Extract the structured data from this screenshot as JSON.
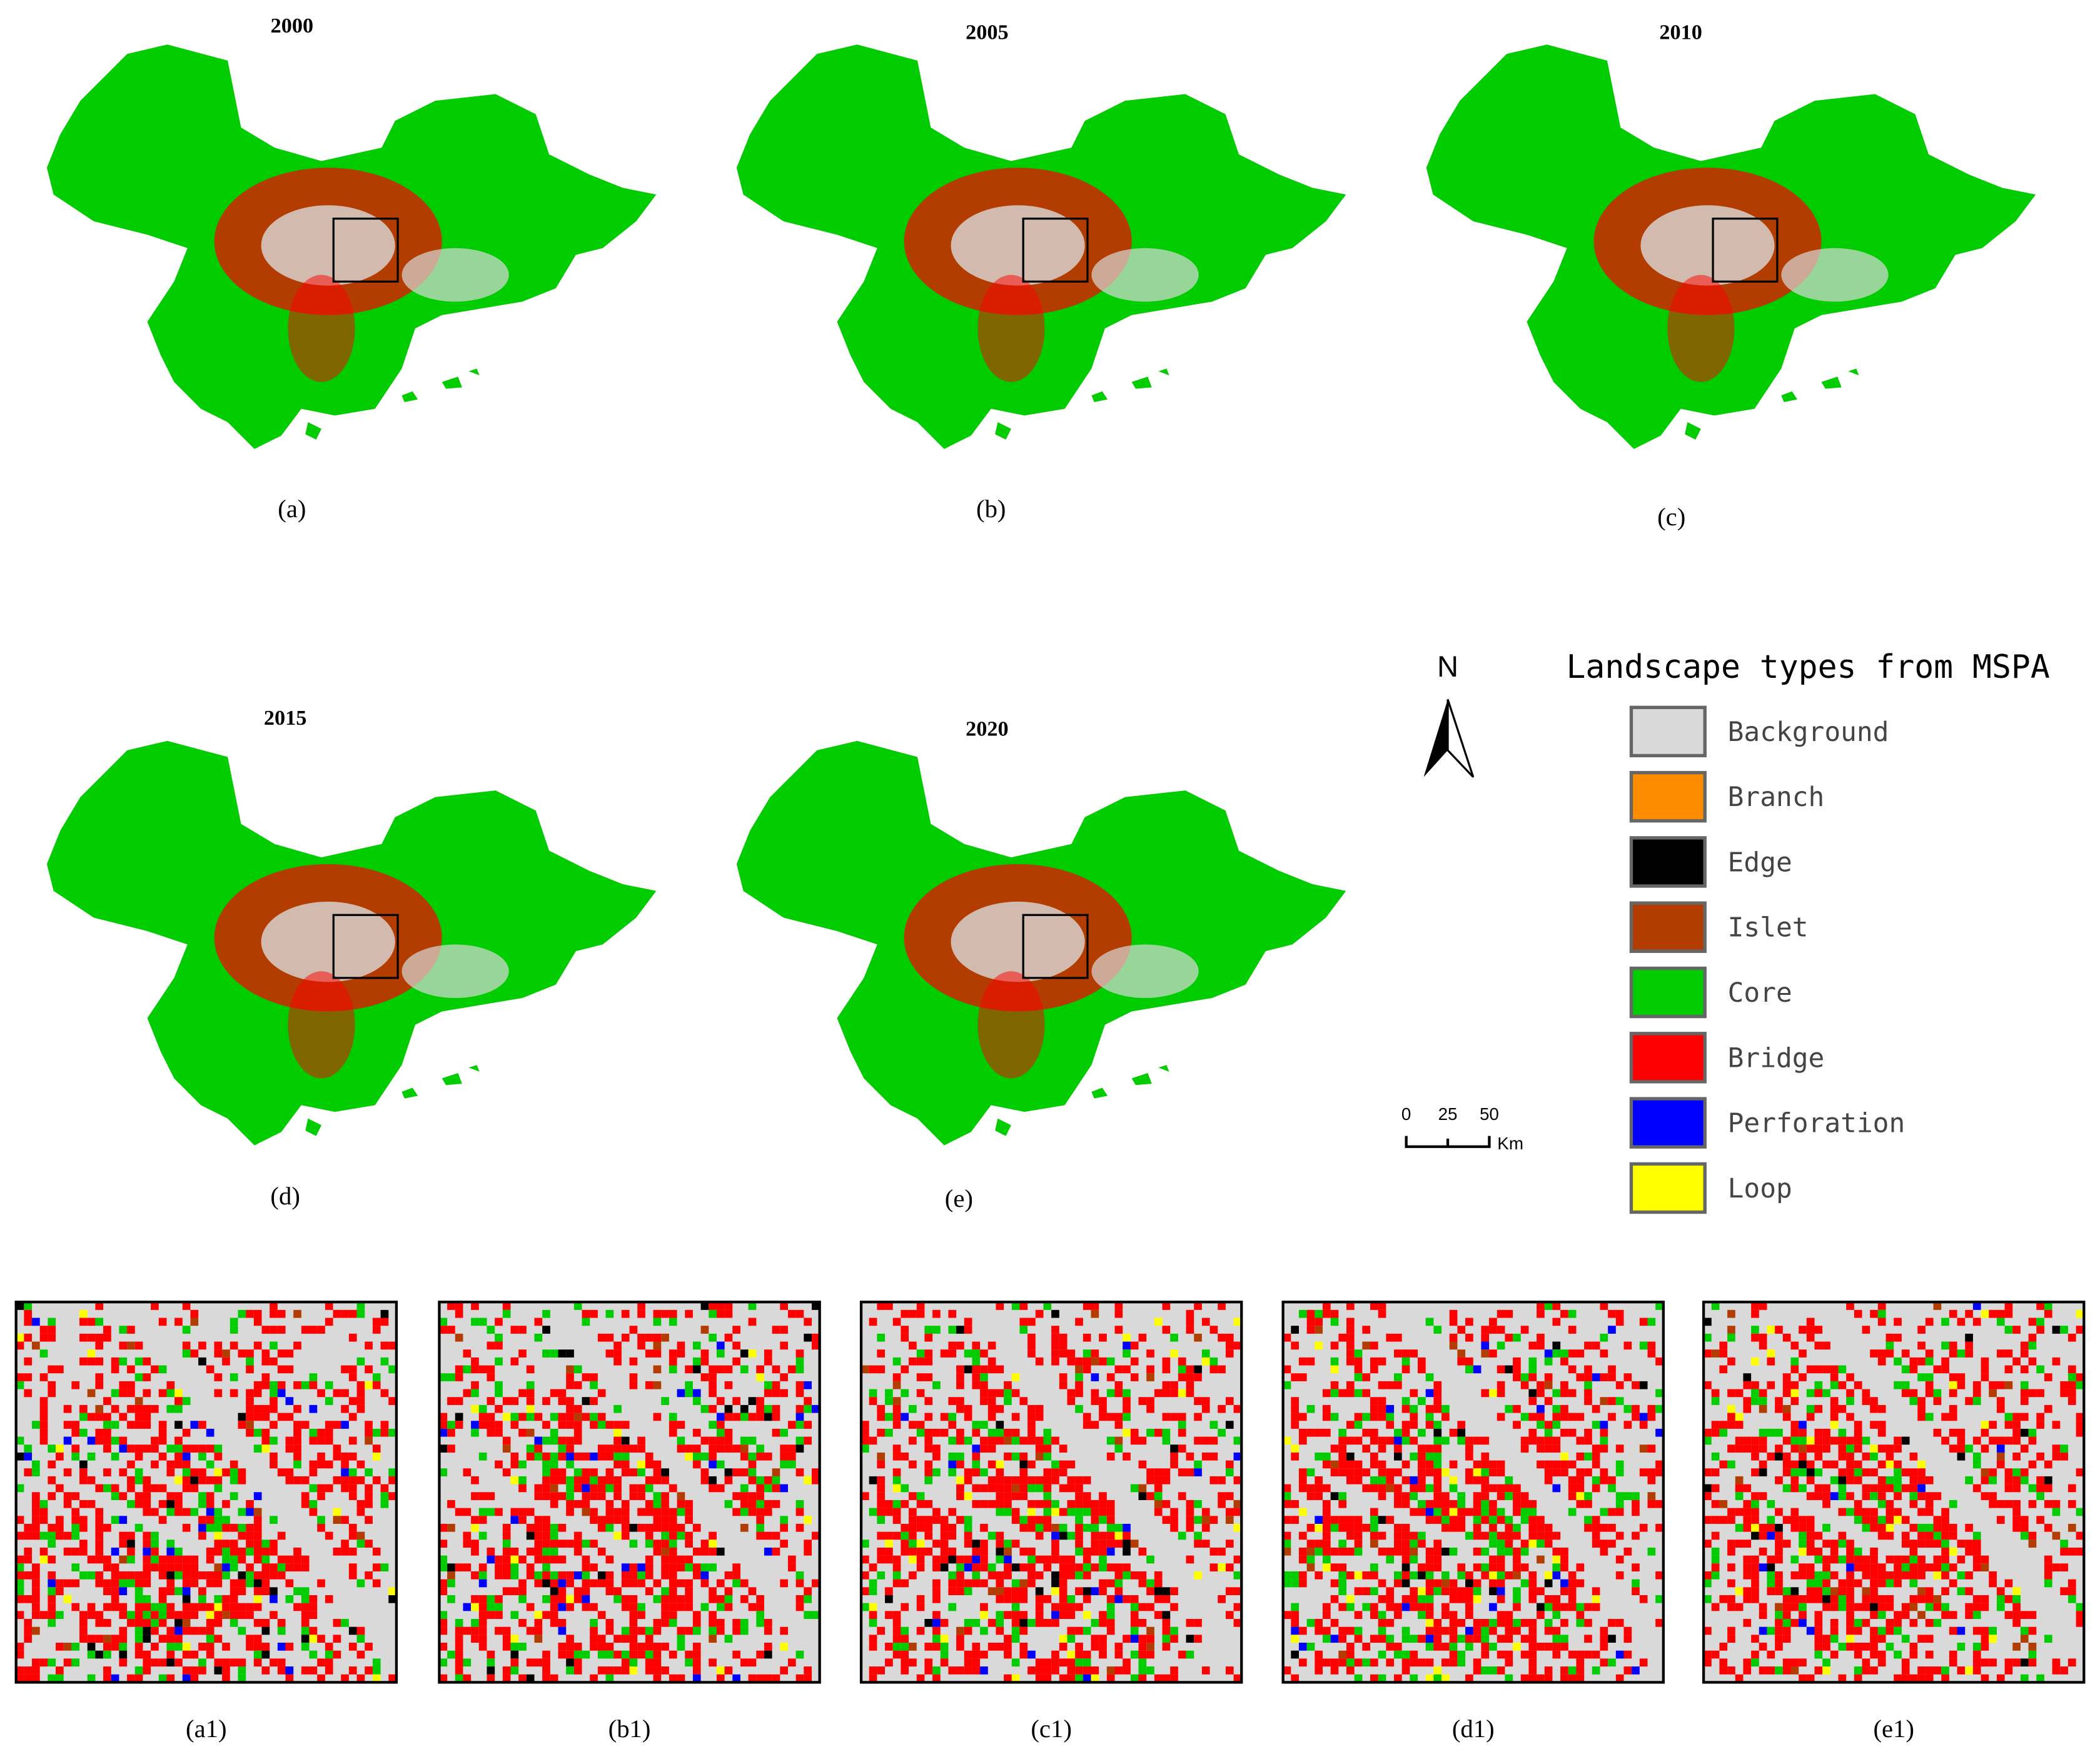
{
  "maps": [
    {
      "year": "2000",
      "label": "(a)"
    },
    {
      "year": "2005",
      "label": "(b)"
    },
    {
      "year": "2010",
      "label": "(c)"
    },
    {
      "year": "2015",
      "label": "(d)"
    },
    {
      "year": "2020",
      "label": "(e)"
    }
  ],
  "details": [
    "(a1)",
    "(b1)",
    "(c1)",
    "(d1)",
    "(e1)"
  ],
  "legend": {
    "title": "Landscape types from MSPA",
    "items": [
      {
        "name": "Background",
        "color": "#d9d9d9"
      },
      {
        "name": "Branch",
        "color": "#ff8c00"
      },
      {
        "name": "Edge",
        "color": "#000000"
      },
      {
        "name": "Islet",
        "color": "#b33c00"
      },
      {
        "name": "Core",
        "color": "#00cc00"
      },
      {
        "name": "Bridge",
        "color": "#ff0000"
      },
      {
        "name": "Perforation",
        "color": "#0000ff"
      },
      {
        "name": "Loop",
        "color": "#ffff00"
      }
    ]
  },
  "north": "N",
  "scale": {
    "ticks": [
      "0",
      "25",
      "50"
    ],
    "unit": "Km"
  }
}
